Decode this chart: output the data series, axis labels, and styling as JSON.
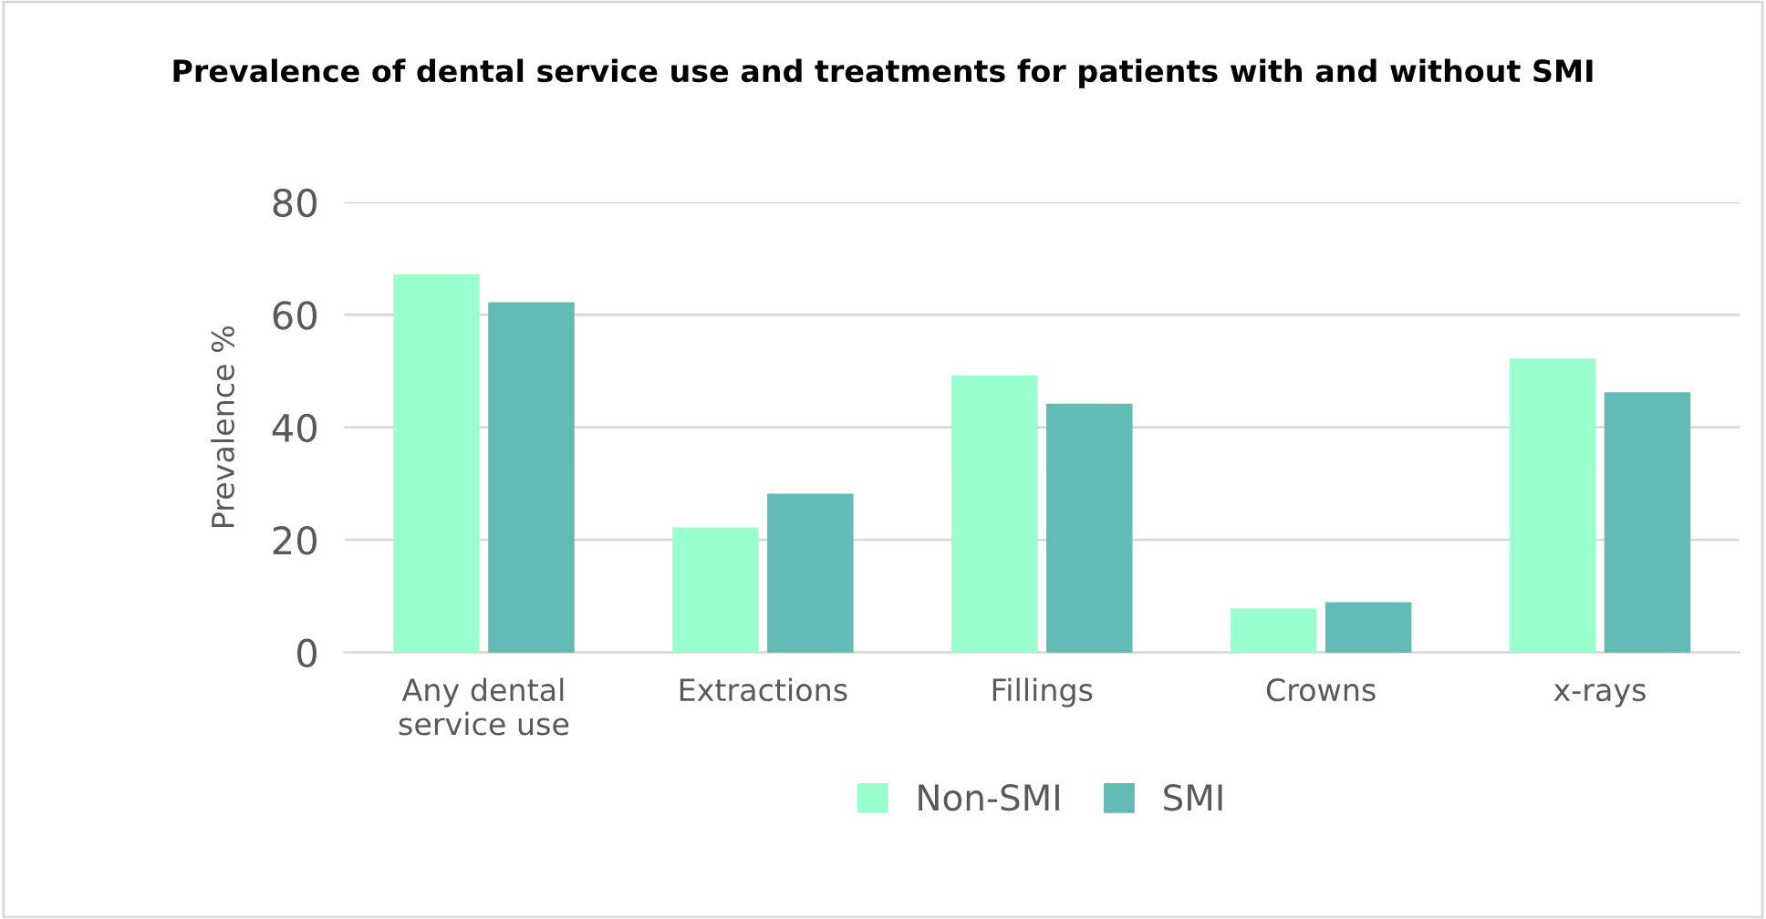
{
  "chart_data": {
    "type": "bar",
    "title": "Prevalence of dental service use and treatments for patients with and without SMI",
    "ylabel": "Prevalence %",
    "categories": [
      "Any dental\nservice use",
      "Extractions",
      "Fillings",
      "Crowns",
      "x-rays"
    ],
    "series": [
      {
        "name": "Non-SMI",
        "color": "#99ffcc",
        "values": [
          67,
          22,
          49,
          7.6,
          52
        ]
      },
      {
        "name": "SMI",
        "color": "#63bbb5",
        "values": [
          62,
          28,
          44,
          8.7,
          46
        ]
      }
    ],
    "ylim": [
      0,
      80
    ],
    "yticks": [
      0,
      20,
      40,
      60,
      80
    ],
    "grid": "y",
    "legend": "bottom"
  }
}
